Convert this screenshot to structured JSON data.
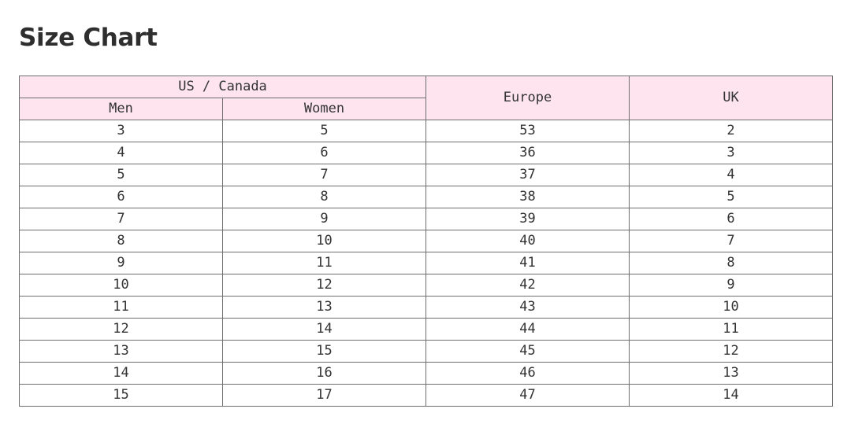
{
  "title": "Size Chart",
  "table": {
    "group_header": "US / Canada",
    "sub_headers": [
      "Men",
      "Women"
    ],
    "headers": [
      "Europe",
      "UK"
    ],
    "rows": [
      [
        "3",
        "5",
        "53",
        "2"
      ],
      [
        "4",
        "6",
        "36",
        "3"
      ],
      [
        "5",
        "7",
        "37",
        "4"
      ],
      [
        "6",
        "8",
        "38",
        "5"
      ],
      [
        "7",
        "9",
        "39",
        "6"
      ],
      [
        "8",
        "10",
        "40",
        "7"
      ],
      [
        "9",
        "11",
        "41",
        "8"
      ],
      [
        "10",
        "12",
        "42",
        "9"
      ],
      [
        "11",
        "13",
        "43",
        "10"
      ],
      [
        "12",
        "14",
        "44",
        "11"
      ],
      [
        "13",
        "15",
        "45",
        "12"
      ],
      [
        "14",
        "16",
        "46",
        "13"
      ],
      [
        "15",
        "17",
        "47",
        "14"
      ]
    ]
  },
  "colors": {
    "header_background": "#fde4ef",
    "border": "#6f6f6f",
    "text": "#333333"
  }
}
